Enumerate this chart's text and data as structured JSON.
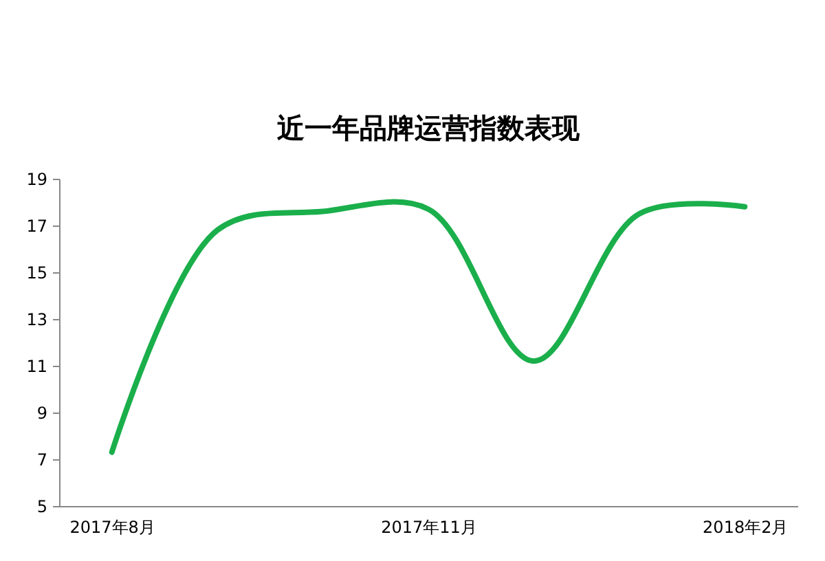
{
  "chart_data": {
    "type": "line",
    "title": "近一年品牌运营指数表现",
    "categories": [
      "2017年8月",
      null,
      null,
      "2017年11月",
      null,
      null,
      "2018年2月"
    ],
    "series": [
      {
        "color": "#1aaf4b",
        "values": [
          7.3,
          16.8,
          17.6,
          17.7,
          11.2,
          17.5,
          17.8
        ]
      }
    ],
    "ylim": [
      5,
      19
    ],
    "yticks": [
      5,
      7,
      9,
      11,
      13,
      15,
      17,
      19
    ],
    "grid": false,
    "legend": false,
    "marker": "none",
    "line_style": "solid"
  }
}
